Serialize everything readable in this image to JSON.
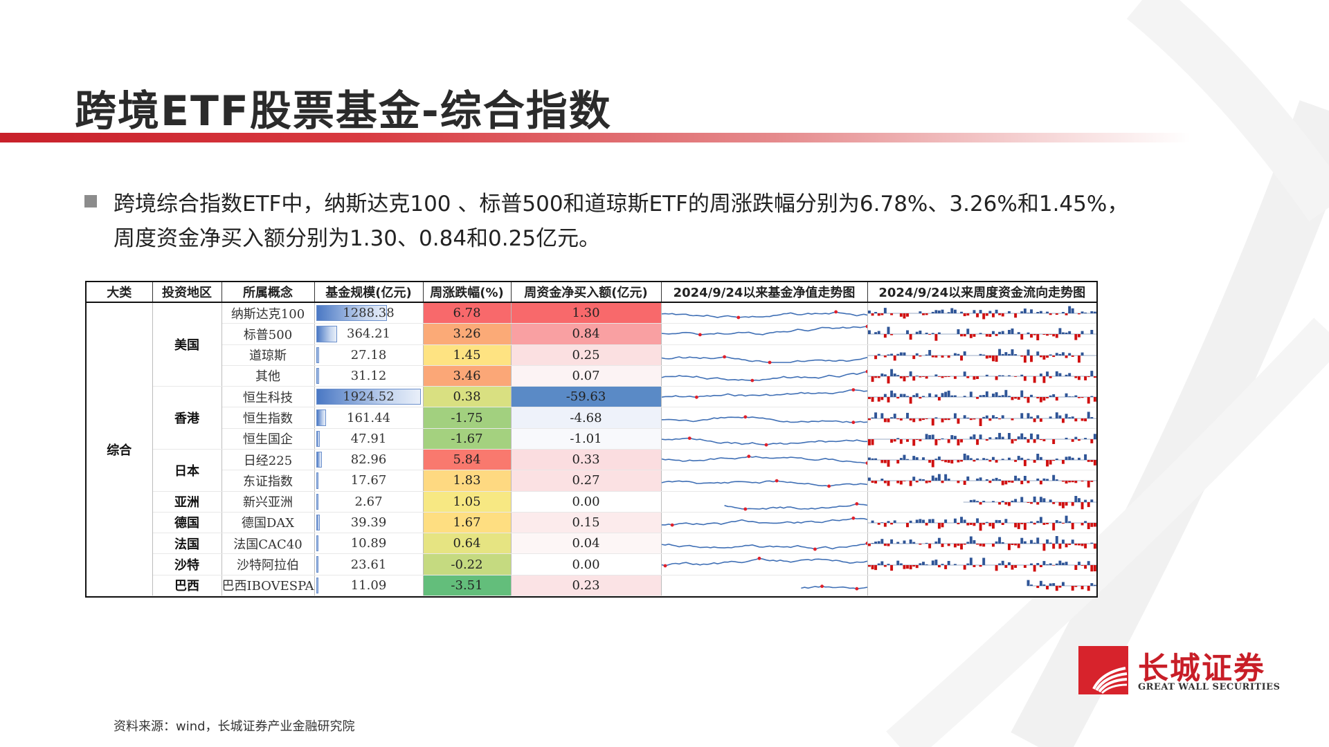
{
  "title": "跨境ETF股票基金-综合指数",
  "bullet": "跨境综合指数ETF中，纳斯达克100 、标普500和道琼斯ETF的周涨跌幅分别为6.78%、3.26%和1.45%，周度资金净买入额分别为1.30、0.84和0.25亿元。",
  "table": {
    "headers": [
      "大类",
      "投资地区",
      "所属概念",
      "基金规模(亿元)",
      "周涨跌幅(%)",
      "周资金净买入额(亿元)",
      "2024/9/24以来基金净值走势图",
      "2024/9/24以来周度资金流向走势图"
    ],
    "category": "综合",
    "regions": [
      {
        "name": "美国",
        "rows": 4
      },
      {
        "name": "香港",
        "rows": 3
      },
      {
        "name": "日本",
        "rows": 2
      },
      {
        "name": "亚洲",
        "rows": 1
      },
      {
        "name": "德国",
        "rows": 1
      },
      {
        "name": "法国",
        "rows": 1
      },
      {
        "name": "沙特",
        "rows": 1
      },
      {
        "name": "巴西",
        "rows": 1
      }
    ],
    "rows": [
      {
        "concept": "纳斯达克100",
        "scale": "1288.38",
        "scale_num": 1288.38,
        "weekly_change": "6.78",
        "change_color": "#f8696b",
        "net_buy": "1.30",
        "net_color": "#f8696b"
      },
      {
        "concept": "标普500",
        "scale": "364.21",
        "scale_num": 364.21,
        "weekly_change": "3.26",
        "change_color": "#fbaa77",
        "net_buy": "0.84",
        "net_color": "#f9a0a2"
      },
      {
        "concept": "道琼斯",
        "scale": "27.18",
        "scale_num": 27.18,
        "weekly_change": "1.45",
        "change_color": "#fee382",
        "net_buy": "0.25",
        "net_color": "#fbe0e1"
      },
      {
        "concept": "其他",
        "scale": "31.12",
        "scale_num": 31.12,
        "weekly_change": "3.46",
        "change_color": "#fba777",
        "net_buy": "0.07",
        "net_color": "#fcf3f4"
      },
      {
        "concept": "恒生科技",
        "scale": "1924.52",
        "scale_num": 1924.52,
        "weekly_change": "0.38",
        "change_color": "#d9e081",
        "net_buy": "-59.63",
        "net_color": "#5a8ac6"
      },
      {
        "concept": "恒生指数",
        "scale": "161.44",
        "scale_num": 161.44,
        "weekly_change": "-1.75",
        "change_color": "#a2d07f",
        "net_buy": "-4.68",
        "net_color": "#eef2fa"
      },
      {
        "concept": "恒生国企",
        "scale": "47.91",
        "scale_num": 47.91,
        "weekly_change": "-1.67",
        "change_color": "#a4d17f",
        "net_buy": "-1.01",
        "net_color": "#f8f9fc"
      },
      {
        "concept": "日经225",
        "scale": "82.96",
        "scale_num": 82.96,
        "weekly_change": "5.84",
        "change_color": "#f9796e",
        "net_buy": "0.33",
        "net_color": "#fbdde0"
      },
      {
        "concept": "东证指数",
        "scale": "17.67",
        "scale_num": 17.67,
        "weekly_change": "1.83",
        "change_color": "#fed981",
        "net_buy": "0.27",
        "net_color": "#fbe1e3"
      },
      {
        "concept": "新兴亚洲",
        "scale": "2.67",
        "scale_num": 2.67,
        "weekly_change": "1.05",
        "change_color": "#f7e883",
        "net_buy": "0.00",
        "net_color": "#ffffff"
      },
      {
        "concept": "德国DAX",
        "scale": "39.39",
        "scale_num": 39.39,
        "weekly_change": "1.67",
        "change_color": "#fede81",
        "net_buy": "0.15",
        "net_color": "#fcebec"
      },
      {
        "concept": "法国CAC40",
        "scale": "10.89",
        "scale_num": 10.89,
        "weekly_change": "0.64",
        "change_color": "#e6e482",
        "net_buy": "0.04",
        "net_color": "#fdf6f6"
      },
      {
        "concept": "沙特阿拉伯",
        "scale": "23.61",
        "scale_num": 23.61,
        "weekly_change": "-0.22",
        "change_color": "#c5da80",
        "net_buy": "0.00",
        "net_color": "#ffffff"
      },
      {
        "concept": "巴西IBOVESPA",
        "scale": "11.09",
        "scale_num": 11.09,
        "weekly_change": "-3.51",
        "change_color": "#63be7b",
        "net_buy": "0.23",
        "net_color": "#fbe3e5"
      }
    ]
  },
  "logo": {
    "cn": "长城证券",
    "en": "GREAT WALL SECURITIES"
  },
  "source": "资料来源：wind，长城证券产业金融研究院",
  "colors": {
    "accent_red": "#c8202a",
    "spark_line": "#3f6fb5",
    "spark_marker": "#e0202a",
    "flow_pos": "#2f5597",
    "flow_neg": "#d01010"
  }
}
